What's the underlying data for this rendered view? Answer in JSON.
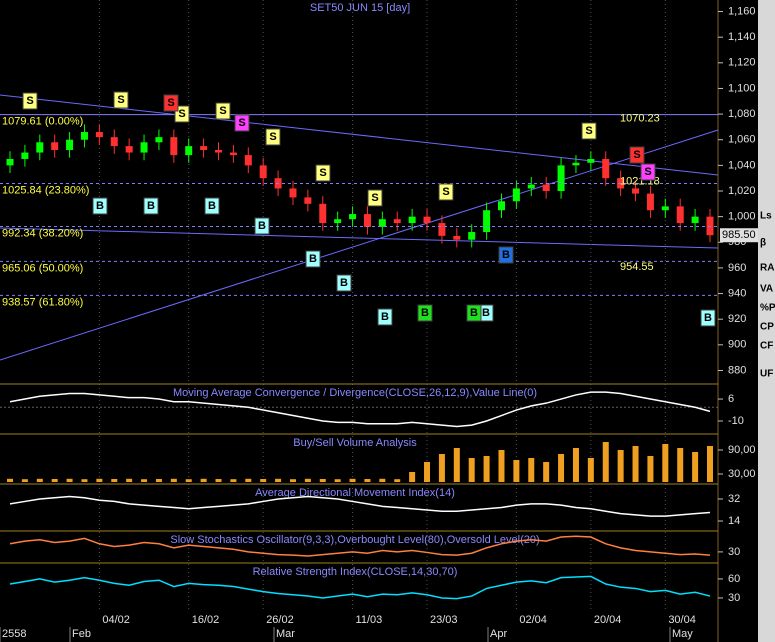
{
  "title": "SET50 JUN 15   [day]",
  "chart_data": [
    {
      "type": "candlestick",
      "categories": [
        null,
        null,
        null,
        null,
        null,
        null,
        "04/02",
        null,
        null,
        null,
        null,
        null,
        "16/02",
        null,
        null,
        null,
        null,
        "26/02",
        null,
        null,
        null,
        null,
        null,
        "11/03",
        null,
        null,
        null,
        null,
        "23/03",
        null,
        null,
        null,
        null,
        null,
        "02/04",
        null,
        null,
        null,
        null,
        "20/04",
        null,
        null,
        null,
        null,
        "30/04",
        null,
        null,
        null
      ],
      "candles": [
        [
          1040,
          1051,
          1034,
          1045
        ],
        [
          1045,
          1056,
          1039,
          1050
        ],
        [
          1050,
          1064,
          1044,
          1058
        ],
        [
          1058,
          1064,
          1046,
          1052
        ],
        [
          1052,
          1066,
          1046,
          1060
        ],
        [
          1060,
          1072,
          1054,
          1066
        ],
        [
          1066,
          1072,
          1056,
          1062
        ],
        [
          1062,
          1068,
          1049,
          1055
        ],
        [
          1055,
          1061,
          1044,
          1050
        ],
        [
          1050,
          1064,
          1044,
          1058
        ],
        [
          1058,
          1068,
          1052,
          1062
        ],
        [
          1062,
          1068,
          1042,
          1048
        ],
        [
          1048,
          1061,
          1042,
          1055
        ],
        [
          1055,
          1061,
          1046,
          1052
        ],
        [
          1052,
          1058,
          1044,
          1050
        ],
        [
          1050,
          1056,
          1042,
          1048
        ],
        [
          1048,
          1054,
          1034,
          1040
        ],
        [
          1040,
          1046,
          1024,
          1030
        ],
        [
          1030,
          1036,
          1016,
          1022
        ],
        [
          1022,
          1028,
          1009,
          1015
        ],
        [
          1015,
          1021,
          1004,
          1010
        ],
        [
          1010,
          1016,
          989,
          995
        ],
        [
          995,
          1004,
          989,
          998
        ],
        [
          998,
          1008,
          992,
          1002
        ],
        [
          1002,
          1008,
          986,
          992
        ],
        [
          992,
          1004,
          986,
          998
        ],
        [
          998,
          1004,
          989,
          995
        ],
        [
          995,
          1006,
          989,
          1000
        ],
        [
          1000,
          1006,
          989,
          995
        ],
        [
          995,
          1001,
          979,
          985
        ],
        [
          985,
          991,
          976,
          982
        ],
        [
          982,
          994,
          976,
          988
        ],
        [
          988,
          1011,
          982,
          1005
        ],
        [
          1005,
          1018,
          999,
          1012
        ],
        [
          1012,
          1028,
          1006,
          1022
        ],
        [
          1022,
          1031,
          1016,
          1025
        ],
        [
          1025,
          1031,
          1014,
          1020
        ],
        [
          1020,
          1046,
          1014,
          1040
        ],
        [
          1040,
          1048,
          1034,
          1042
        ],
        [
          1042,
          1051,
          1036,
          1045
        ],
        [
          1045,
          1051,
          1024,
          1030
        ],
        [
          1030,
          1036,
          1016,
          1022
        ],
        [
          1022,
          1028,
          1012,
          1018
        ],
        [
          1018,
          1024,
          999,
          1005
        ],
        [
          1005,
          1014,
          999,
          1008
        ],
        [
          1008,
          1014,
          989,
          995
        ],
        [
          995,
          1006,
          989,
          1000
        ],
        [
          1000,
          1006,
          980,
          985.5
        ]
      ],
      "up_color": "#00ff00",
      "down_color": "#ff3030",
      "ylim": [
        871,
        1169
      ],
      "yticks": [
        {
          "value": 1160,
          "label": "1,160"
        },
        {
          "value": 1140,
          "label": "1,140"
        },
        {
          "value": 1120,
          "label": "1,120"
        },
        {
          "value": 1100,
          "label": "1,100"
        },
        {
          "value": 1080,
          "label": "1,080"
        },
        {
          "value": 1060,
          "label": "1,060"
        },
        {
          "value": 1040,
          "label": "1,040"
        },
        {
          "value": 1020,
          "label": "1,020"
        },
        {
          "value": 1000,
          "label": "1,000"
        },
        980,
        960,
        940,
        920,
        900,
        880
      ],
      "levels": [
        {
          "value": 1079.61,
          "label": "1079.61 (0.00%)"
        },
        {
          "value": 1025.84,
          "label": "1025.84 (23.80%)"
        },
        {
          "value": 992.34,
          "label": "992.34 (38.20%)"
        },
        {
          "value": 965.06,
          "label": "965.06 (50.00%)"
        },
        {
          "value": 938.57,
          "label": "938.57 (61.80%)"
        }
      ],
      "annotations": [
        {
          "value": 1070.23,
          "label": "1070.23"
        },
        {
          "value": 1021.18,
          "label": "1021.18"
        },
        {
          "value": 954.55,
          "label": "954.55"
        }
      ],
      "last": {
        "value": 985.5,
        "label": "985.50"
      }
    },
    {
      "type": "line",
      "title": "Moving Average Convergence / Divergence(CLOSE,26,12,9),Value Line(0)",
      "color": "#ffffff",
      "values": [
        4,
        6,
        8,
        9,
        10,
        10,
        9,
        8,
        7,
        7,
        6,
        4,
        4,
        3,
        2,
        1,
        0,
        -2,
        -4,
        -6,
        -8,
        -10,
        -11,
        -11,
        -12,
        -12,
        -12,
        -11,
        -12,
        -13,
        -14,
        -13,
        -10,
        -6,
        -2,
        1,
        3,
        6,
        9,
        11,
        11,
        10,
        8,
        6,
        4,
        2,
        0,
        -3
      ],
      "hline": 0,
      "ylim": [
        -18,
        15.5
      ],
      "yticks": [
        6,
        -10
      ]
    },
    {
      "type": "bar",
      "title": "Buy/Sell Volume Analysis",
      "color": "#f0a020",
      "values": [
        18000,
        17000,
        18000,
        17500,
        18000,
        17000,
        18000,
        17500,
        18000,
        17000,
        17500,
        18000,
        17000,
        18000,
        17500,
        17000,
        18000,
        17500,
        18000,
        17000,
        18000,
        17500,
        17000,
        18000,
        17500,
        18000,
        17000,
        35000,
        60000,
        80000,
        95000,
        70000,
        75000,
        90000,
        65000,
        70000,
        60000,
        80000,
        95000,
        70000,
        110000,
        90000,
        100000,
        75000,
        105000,
        95000,
        85000,
        100000
      ],
      "ylim": [
        10000,
        125000
      ],
      "yticks": [
        {
          "value": 90000,
          "label": "90,00"
        },
        {
          "value": 30000,
          "label": "30,00"
        }
      ]
    },
    {
      "type": "line",
      "title": "Average Directional Movement Index(14)",
      "color": "#ffffff",
      "values": [
        28,
        30,
        32,
        33,
        34,
        33,
        31,
        30,
        28,
        27,
        26,
        25,
        24,
        25,
        26,
        27,
        28,
        30,
        32,
        33,
        34,
        33,
        32,
        30,
        28,
        26,
        25,
        24,
        23,
        22,
        22,
        23,
        24,
        25,
        27,
        28,
        28,
        27,
        25,
        24,
        22,
        20,
        19,
        18,
        18,
        19,
        20,
        21
      ],
      "ylim": [
        8.3,
        42.6
      ],
      "yticks": [
        32,
        14
      ]
    },
    {
      "type": "line",
      "title": "Slow Stochastics Oscillator(9,3,3),Overbought Level(80),Oversold Level(20)",
      "color": "#ff8040",
      "values": [
        60,
        70,
        75,
        65,
        70,
        80,
        60,
        50,
        55,
        65,
        60,
        45,
        55,
        50,
        45,
        40,
        30,
        25,
        20,
        18,
        15,
        20,
        25,
        30,
        25,
        35,
        30,
        35,
        28,
        20,
        18,
        25,
        45,
        60,
        70,
        75,
        70,
        85,
        88,
        85,
        60,
        45,
        35,
        30,
        25,
        20,
        22,
        18
      ],
      "ylim": [
        0,
        100
      ],
      "yticks": [
        30
      ]
    },
    {
      "type": "line",
      "title": "Relative Strength Index(CLOSE,14,30,70)",
      "color": "#00e0ff",
      "values": [
        52,
        56,
        60,
        55,
        58,
        62,
        58,
        53,
        50,
        56,
        58,
        48,
        53,
        51,
        50,
        48,
        44,
        40,
        37,
        35,
        33,
        30,
        33,
        36,
        32,
        36,
        35,
        38,
        35,
        30,
        29,
        33,
        45,
        50,
        55,
        57,
        54,
        62,
        63,
        64,
        52,
        47,
        45,
        40,
        42,
        36,
        39,
        33
      ],
      "ylim": [
        11,
        82
      ],
      "yticks": [
        60,
        30
      ]
    }
  ],
  "months": [
    "2558",
    "Feb",
    "Mar",
    "Apr",
    "May"
  ],
  "signals": [
    {
      "label": "S",
      "color": "#ffff80"
    },
    {
      "label": "S",
      "color": "#ffff80"
    },
    {
      "label": "S",
      "color": "#ffff80"
    },
    {
      "label": "S",
      "color": "#ffff80"
    },
    {
      "label": "S",
      "color": "#ffff80"
    },
    {
      "label": "S",
      "color": "#ffff80"
    },
    {
      "label": "S",
      "color": "#ffff80"
    },
    {
      "label": "S",
      "color": "#ffff80"
    },
    {
      "label": "S",
      "color": "#ffff80"
    },
    {
      "label": "S",
      "color": "#ff3030"
    },
    {
      "label": "S",
      "color": "#ff3030"
    },
    {
      "label": "S",
      "color": "#ff40ff"
    },
    {
      "label": "S",
      "color": "#ff40ff"
    },
    {
      "label": "B",
      "color": "#a0ffff"
    },
    {
      "label": "B",
      "color": "#a0ffff"
    },
    {
      "label": "B",
      "color": "#a0ffff"
    },
    {
      "label": "B",
      "color": "#a0ffff"
    },
    {
      "label": "B",
      "color": "#a0ffff"
    },
    {
      "label": "B",
      "color": "#a0ffff"
    },
    {
      "label": "B",
      "color": "#a0ffff"
    },
    {
      "label": "B",
      "color": "#a0ffff"
    },
    {
      "label": "B",
      "color": "#a0ffff"
    },
    {
      "label": "B",
      "color": "#20e020"
    },
    {
      "label": "B",
      "color": "#20e020"
    },
    {
      "label": "B",
      "color": "#2070e0"
    }
  ],
  "sidebar": [
    "Ls",
    "β",
    "RA",
    "VA",
    "%P",
    "CP",
    "CF",
    "UF"
  ]
}
